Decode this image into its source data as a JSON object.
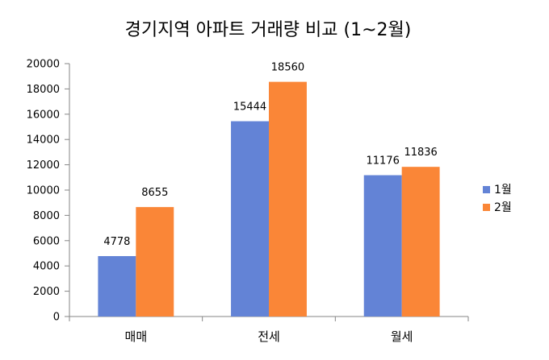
{
  "chart_data": {
    "type": "bar",
    "title": "경기지역 아파트 거래량 비교 (1~2월)",
    "xlabel": "",
    "ylabel": "",
    "categories": [
      "매매",
      "전세",
      "월세"
    ],
    "series": [
      {
        "name": "1월",
        "values": [
          4778,
          15444,
          11176
        ],
        "color": "#6383d6"
      },
      {
        "name": "2월",
        "values": [
          8655,
          18560,
          11836
        ],
        "color": "#fa8637"
      }
    ],
    "ylim": [
      0,
      20000
    ],
    "yticks": [
      "0",
      "2000",
      "4000",
      "6000",
      "8000",
      "10000",
      "12000",
      "14000",
      "16000",
      "18000",
      "20000"
    ],
    "grid": false,
    "legend": "right",
    "data_labels": true
  }
}
